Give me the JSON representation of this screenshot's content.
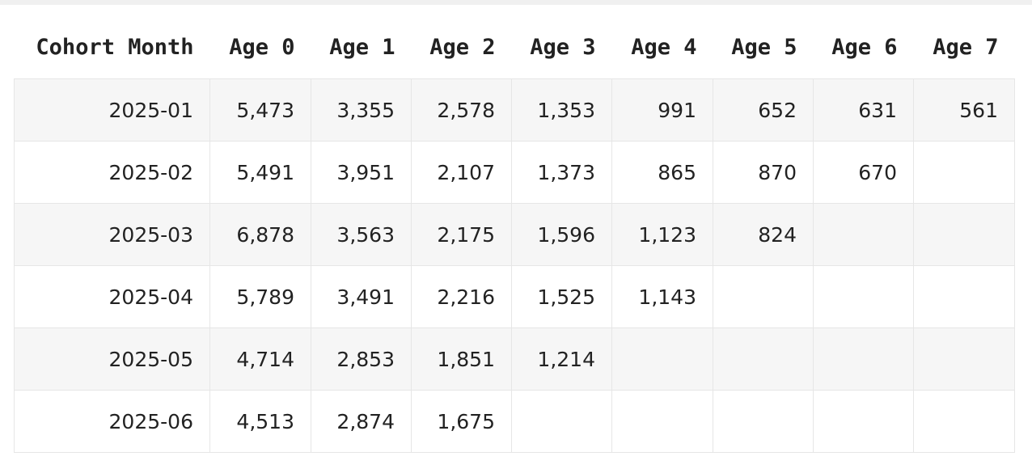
{
  "table": {
    "header": [
      "Cohort Month",
      "Age 0",
      "Age 1",
      "Age 2",
      "Age 3",
      "Age 4",
      "Age 5",
      "Age 6",
      "Age 7"
    ],
    "rows": [
      [
        "2025-01",
        "5,473",
        "3,355",
        "2,578",
        "1,353",
        "991",
        "652",
        "631",
        "561"
      ],
      [
        "2025-02",
        "5,491",
        "3,951",
        "2,107",
        "1,373",
        "865",
        "870",
        "670"
      ],
      [
        "2025-03",
        "6,878",
        "3,563",
        "2,175",
        "1,596",
        "1,123",
        "824"
      ],
      [
        "2025-04",
        "5,789",
        "3,491",
        "2,216",
        "1,525",
        "1,143"
      ],
      [
        "2025-05",
        "4,714",
        "2,853",
        "1,851",
        "1,214"
      ],
      [
        "2025-06",
        "4,513",
        "2,874",
        "1,675"
      ]
    ]
  }
}
